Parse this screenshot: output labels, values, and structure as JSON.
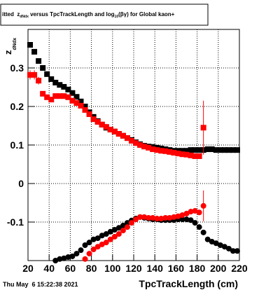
{
  "chart_data": {
    "type": "scatter",
    "title_parts": [
      "itted  z",
      "dNdx",
      " versus TpcTrackLength and log",
      "10",
      "(βγ) for Global kaon+"
    ],
    "ylabel_parts": [
      "z",
      "dNdx"
    ],
    "xlabel": "TpcTrackLength (cm)",
    "timestamp": "Thu May  6 15:22:38 2021",
    "xlim": [
      20,
      220
    ],
    "xticks": [
      20,
      40,
      60,
      80,
      100,
      120,
      140,
      160,
      180,
      200,
      220
    ],
    "ylim": [
      -0.2,
      0.4
    ],
    "yticks": [
      -0.1,
      0,
      0.1,
      0.2,
      0.3
    ],
    "grid": true,
    "x": [
      22,
      26,
      30,
      34,
      38,
      42,
      46,
      50,
      54,
      58,
      62,
      66,
      70,
      74,
      78,
      82,
      86,
      90,
      94,
      98,
      102,
      106,
      110,
      114,
      118,
      122,
      126,
      130,
      134,
      138,
      142,
      146,
      150,
      154,
      158,
      162,
      166,
      170,
      174,
      178,
      182,
      186,
      190,
      194,
      198,
      202,
      206,
      210,
      214,
      218
    ],
    "series": [
      {
        "color": "#000000",
        "marker": "square",
        "values": [
          0.36,
          0.342,
          0.318,
          0.3,
          0.284,
          0.271,
          0.262,
          0.256,
          0.251,
          0.244,
          0.235,
          0.225,
          0.213,
          0.2,
          0.185,
          0.173,
          0.162,
          0.153,
          0.145,
          0.14,
          0.135,
          0.129,
          0.124,
          0.118,
          0.113,
          0.107,
          0.102,
          0.098,
          0.096,
          0.095,
          0.093,
          0.091,
          0.089,
          0.087,
          0.085,
          0.085,
          0.085,
          0.085,
          0.087,
          0.087,
          0.087,
          0.087,
          0.089,
          0.089,
          0.087,
          0.087,
          0.087,
          0.087,
          0.087,
          0.087
        ]
      },
      {
        "color": "#ff0000",
        "marker": "square",
        "values": [
          0.282,
          0.282,
          0.267,
          0.233,
          0.224,
          0.218,
          0.227,
          0.227,
          0.227,
          0.224,
          0.215,
          0.209,
          0.202,
          0.191,
          0.18,
          0.167,
          0.16,
          0.153,
          0.147,
          0.14,
          0.135,
          0.129,
          0.124,
          0.118,
          0.111,
          0.105,
          0.1,
          0.096,
          0.093,
          0.089,
          0.087,
          0.085,
          0.084,
          0.082,
          0.08,
          0.078,
          0.076,
          0.075,
          0.073,
          0.071,
          0.071,
          0.145,
          null,
          null,
          null,
          null,
          null,
          null,
          null,
          null
        ],
        "errors": [
          0.012,
          0.012,
          0.01,
          null,
          null,
          null,
          null,
          null,
          null,
          null,
          null,
          null,
          null,
          null,
          null,
          null,
          null,
          null,
          null,
          null,
          null,
          null,
          null,
          null,
          null,
          null,
          null,
          null,
          null,
          null,
          null,
          null,
          null,
          null,
          null,
          null,
          null,
          null,
          null,
          null,
          null,
          0.07,
          null,
          null,
          null,
          null,
          null,
          null,
          null,
          null
        ]
      },
      {
        "color": "#000000",
        "marker": "circle",
        "values": [
          null,
          null,
          null,
          null,
          null,
          null,
          -0.2,
          -0.196,
          -0.194,
          -0.191,
          -0.189,
          -0.182,
          -0.173,
          -0.16,
          -0.153,
          -0.145,
          -0.142,
          -0.135,
          -0.131,
          -0.125,
          -0.12,
          -0.115,
          -0.109,
          -0.102,
          -0.096,
          -0.091,
          -0.087,
          -0.089,
          -0.091,
          -0.093,
          -0.093,
          -0.095,
          -0.095,
          -0.095,
          -0.095,
          -0.093,
          -0.093,
          -0.093,
          -0.095,
          -0.102,
          -0.113,
          -0.127,
          -0.145,
          -0.151,
          -0.155,
          -0.16,
          -0.164,
          -0.169,
          -0.175,
          -0.175
        ]
      },
      {
        "color": "#ff0000",
        "marker": "circle",
        "values": [
          null,
          null,
          null,
          null,
          null,
          null,
          null,
          null,
          null,
          null,
          null,
          null,
          null,
          -0.196,
          -0.182,
          -0.171,
          -0.164,
          -0.158,
          -0.153,
          -0.145,
          -0.138,
          -0.131,
          -0.122,
          -0.113,
          -0.102,
          -0.093,
          -0.087,
          -0.087,
          -0.089,
          -0.089,
          -0.091,
          -0.091,
          -0.089,
          -0.089,
          -0.087,
          -0.085,
          -0.082,
          -0.078,
          -0.073,
          -0.071,
          -0.075,
          -0.058,
          null,
          null,
          null,
          null,
          null,
          null,
          null,
          null
        ],
        "errors": [
          null,
          null,
          null,
          null,
          null,
          null,
          null,
          null,
          null,
          null,
          null,
          null,
          null,
          null,
          null,
          null,
          null,
          null,
          null,
          null,
          null,
          null,
          null,
          null,
          null,
          null,
          null,
          null,
          null,
          null,
          null,
          null,
          null,
          null,
          null,
          null,
          null,
          null,
          null,
          null,
          null,
          0.04,
          null,
          null,
          null,
          null,
          null,
          null,
          null,
          null
        ]
      }
    ]
  }
}
